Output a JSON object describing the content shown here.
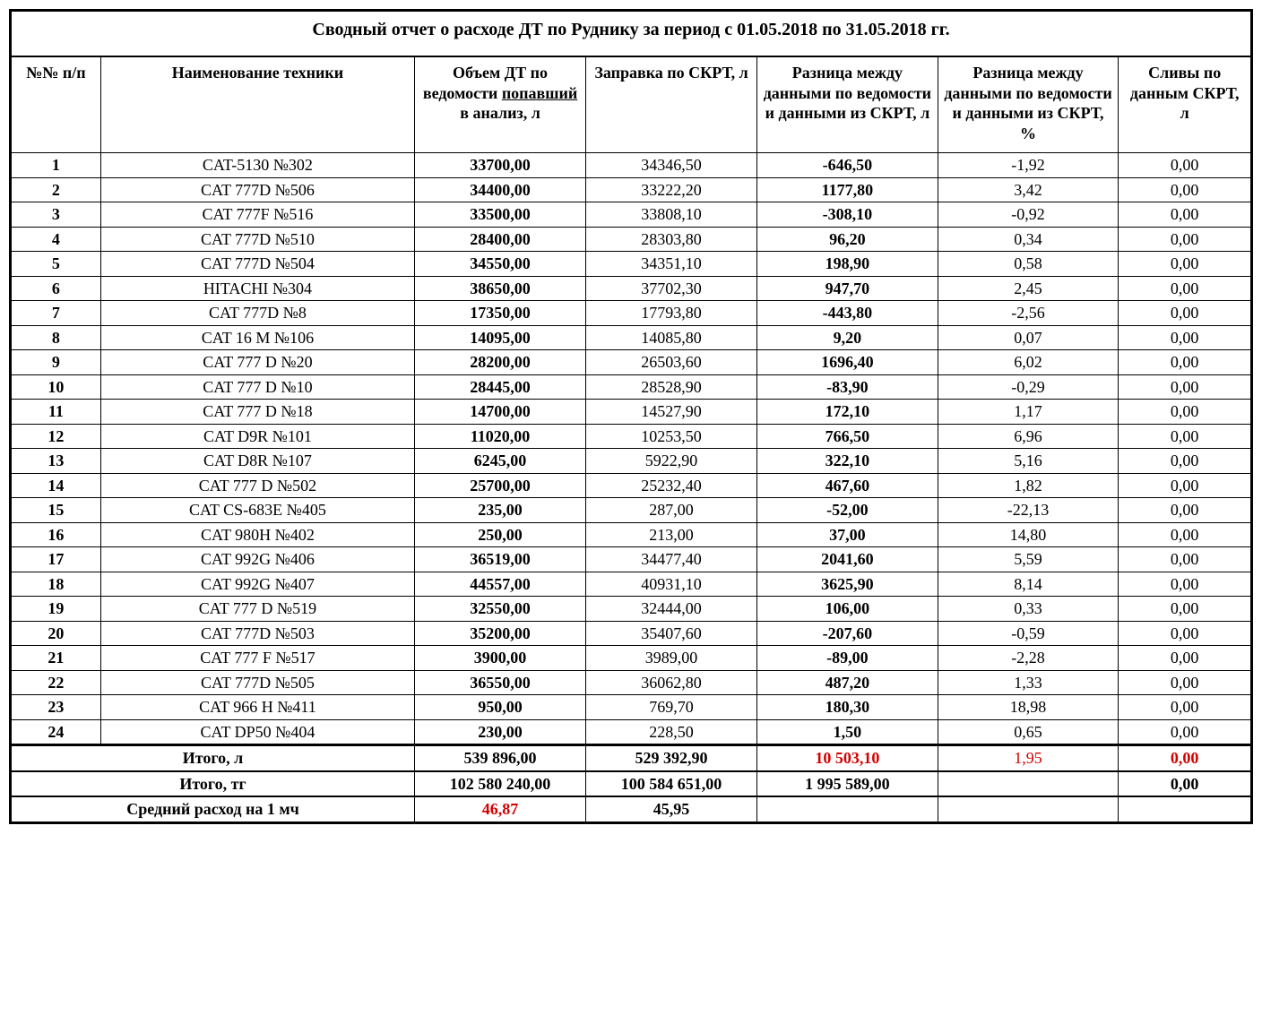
{
  "title": "Сводный отчет о расходе ДТ по Руднику за период с 01.05.2018 по 31.05.2018 гг.",
  "columns": {
    "c0": "№№ п/п",
    "c1": "Наименование техники",
    "c2_pre": "Объем ДТ по ведомости ",
    "c2_u": "попавший",
    "c2_post": " в анализ, л",
    "c3": "Заправка по СКРТ, л",
    "c4": "Разница между данными по ведомости и данными из СКРТ, л",
    "c5": "Разница между данными по ведомости и данными из СКРТ, %",
    "c6": "Сливы по данным СКРТ, л"
  },
  "rows": [
    {
      "n": "1",
      "name": "CAT-5130 №302",
      "vol": "33700,00",
      "skrt": "34346,50",
      "dl": "-646,50",
      "dp": "-1,92",
      "s": "0,00"
    },
    {
      "n": "2",
      "name": "CAT 777D №506",
      "vol": "34400,00",
      "skrt": "33222,20",
      "dl": "1177,80",
      "dp": "3,42",
      "s": "0,00"
    },
    {
      "n": "3",
      "name": "CAT 777F №516",
      "vol": "33500,00",
      "skrt": "33808,10",
      "dl": "-308,10",
      "dp": "-0,92",
      "s": "0,00"
    },
    {
      "n": "4",
      "name": "CAT 777D №510",
      "vol": "28400,00",
      "skrt": "28303,80",
      "dl": "96,20",
      "dp": "0,34",
      "s": "0,00"
    },
    {
      "n": "5",
      "name": "CAT 777D №504",
      "vol": "34550,00",
      "skrt": "34351,10",
      "dl": "198,90",
      "dp": "0,58",
      "s": "0,00"
    },
    {
      "n": "6",
      "name": "HITACHI №304",
      "vol": "38650,00",
      "skrt": "37702,30",
      "dl": "947,70",
      "dp": "2,45",
      "s": "0,00"
    },
    {
      "n": "7",
      "name": "CAT 777D №8",
      "vol": "17350,00",
      "skrt": "17793,80",
      "dl": "-443,80",
      "dp": "-2,56",
      "s": "0,00"
    },
    {
      "n": "8",
      "name": "CAT 16 M №106",
      "vol": "14095,00",
      "skrt": "14085,80",
      "dl": "9,20",
      "dp": "0,07",
      "s": "0,00"
    },
    {
      "n": "9",
      "name": "CAT 777 D №20",
      "vol": "28200,00",
      "skrt": "26503,60",
      "dl": "1696,40",
      "dp": "6,02",
      "s": "0,00"
    },
    {
      "n": "10",
      "name": "CAT 777 D №10",
      "vol": "28445,00",
      "skrt": "28528,90",
      "dl": "-83,90",
      "dp": "-0,29",
      "s": "0,00"
    },
    {
      "n": "11",
      "name": "CAT 777 D №18",
      "vol": "14700,00",
      "skrt": "14527,90",
      "dl": "172,10",
      "dp": "1,17",
      "s": "0,00"
    },
    {
      "n": "12",
      "name": "CAT  D9R №101",
      "vol": "11020,00",
      "skrt": "10253,50",
      "dl": "766,50",
      "dp": "6,96",
      "s": "0,00"
    },
    {
      "n": "13",
      "name": "CAT D8R №107",
      "vol": "6245,00",
      "skrt": "5922,90",
      "dl": "322,10",
      "dp": "5,16",
      "s": "0,00"
    },
    {
      "n": "14",
      "name": "CAT 777 D №502",
      "vol": "25700,00",
      "skrt": "25232,40",
      "dl": "467,60",
      "dp": "1,82",
      "s": "0,00"
    },
    {
      "n": "15",
      "name": "CAT CS-683E №405",
      "vol": "235,00",
      "skrt": "287,00",
      "dl": "-52,00",
      "dp": "-22,13",
      "s": "0,00"
    },
    {
      "n": "16",
      "name": "CAT 980H №402",
      "vol": "250,00",
      "skrt": "213,00",
      "dl": "37,00",
      "dp": "14,80",
      "s": "0,00"
    },
    {
      "n": "17",
      "name": "CAT 992G №406",
      "vol": "36519,00",
      "skrt": "34477,40",
      "dl": "2041,60",
      "dp": "5,59",
      "s": "0,00"
    },
    {
      "n": "18",
      "name": "CAT 992G №407",
      "vol": "44557,00",
      "skrt": "40931,10",
      "dl": "3625,90",
      "dp": "8,14",
      "s": "0,00"
    },
    {
      "n": "19",
      "name": "CAT 777 D №519",
      "vol": "32550,00",
      "skrt": "32444,00",
      "dl": "106,00",
      "dp": "0,33",
      "s": "0,00"
    },
    {
      "n": "20",
      "name": "CAT 777D №503",
      "vol": "35200,00",
      "skrt": "35407,60",
      "dl": "-207,60",
      "dp": "-0,59",
      "s": "0,00"
    },
    {
      "n": "21",
      "name": "CAT 777 F №517",
      "vol": "3900,00",
      "skrt": "3989,00",
      "dl": "-89,00",
      "dp": "-2,28",
      "s": "0,00"
    },
    {
      "n": "22",
      "name": "CAT 777D №505",
      "vol": "36550,00",
      "skrt": "36062,80",
      "dl": "487,20",
      "dp": "1,33",
      "s": "0,00"
    },
    {
      "n": "23",
      "name": "CAT 966 H №411",
      "vol": "950,00",
      "skrt": "769,70",
      "dl": "180,30",
      "dp": "18,98",
      "s": "0,00"
    },
    {
      "n": "24",
      "name": "CAT DP50 №404",
      "vol": "230,00",
      "skrt": "228,50",
      "dl": "1,50",
      "dp": "0,65",
      "s": "0,00"
    }
  ],
  "totals": {
    "liters": {
      "label": "Итого, л",
      "vol": "539 896,00",
      "skrt": "529 392,90",
      "dl": "10 503,10",
      "dp": "1,95",
      "s": "0,00"
    },
    "tg": {
      "label": "Итого, тг",
      "vol": "102 580 240,00",
      "skrt": "100 584 651,00",
      "dl": "1 995 589,00",
      "dp": "",
      "s": "0,00"
    },
    "avg": {
      "label": "Средний расход на 1 мч",
      "vol": "46,87",
      "skrt": "45,95",
      "dl": "",
      "dp": "",
      "s": ""
    }
  }
}
